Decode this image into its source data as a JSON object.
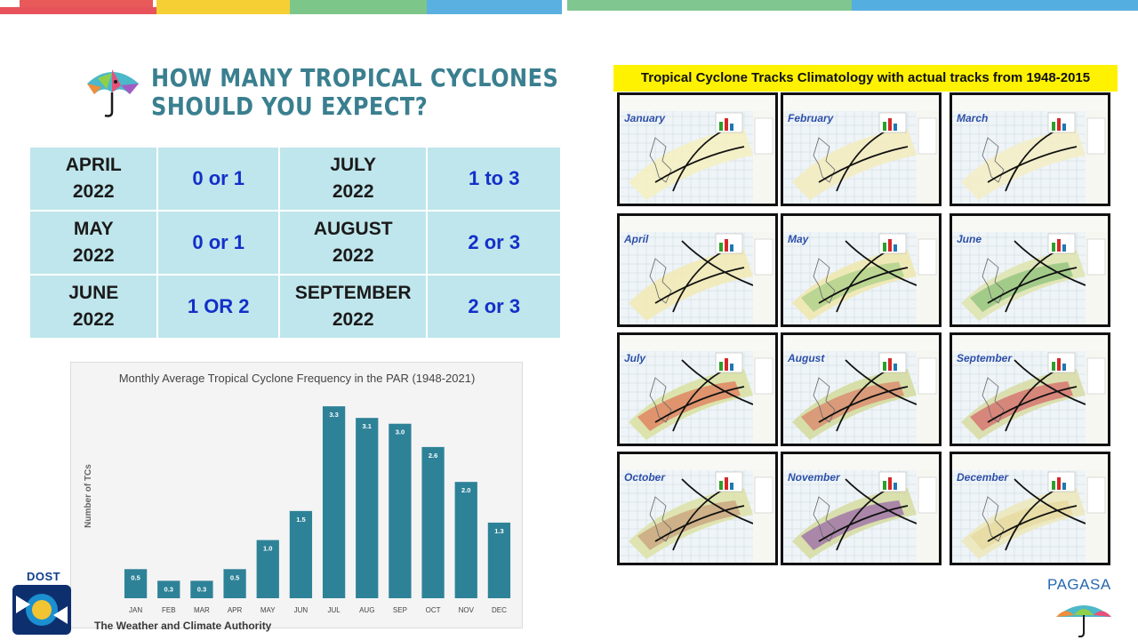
{
  "title": {
    "line1": "HOW MANY TROPICAL CYCLONES",
    "line2": "SHOULD YOU EXPECT?"
  },
  "forecast_table": {
    "rows": [
      {
        "month_a": "APRIL",
        "year_a": "2022",
        "value_a": "0 or 1",
        "month_b": "JULY",
        "year_b": "2022",
        "value_b": "1 to 3"
      },
      {
        "month_a": "MAY",
        "year_a": "2022",
        "value_a": "0 or 1",
        "month_b": "AUGUST",
        "year_b": "2022",
        "value_b": "2 or 3"
      },
      {
        "month_a": "JUNE",
        "year_a": "2022",
        "value_a": "1 OR 2",
        "month_b": "SEPTEMBER",
        "year_b": "2022",
        "value_b": "2 or 3"
      }
    ]
  },
  "chart_data": {
    "type": "bar",
    "title": "Monthly Average Tropical Cyclone Frequency in the PAR (1948-2021)",
    "xlabel": "",
    "ylabel": "Number of TCs",
    "categories": [
      "JAN",
      "FEB",
      "MAR",
      "APR",
      "MAY",
      "JUN",
      "JUL",
      "AUG",
      "SEP",
      "OCT",
      "NOV",
      "DEC"
    ],
    "values": [
      0.5,
      0.3,
      0.3,
      0.5,
      1.0,
      1.5,
      3.3,
      3.1,
      3.0,
      2.6,
      2.0,
      1.3
    ],
    "value_labels": [
      "0.5",
      "0.3",
      "0.3",
      "0.5",
      "1.0",
      "1.5",
      "3.3",
      "3.1",
      "3.0",
      "2.6",
      "2.0",
      "1.3"
    ],
    "ylim": [
      0,
      3.5
    ],
    "grid": false,
    "bar_color": "#2e8298"
  },
  "climatology": {
    "title": "Tropical Cyclone Tracks Climatology with actual tracks from 1948-2015",
    "months": [
      "January",
      "February",
      "March",
      "April",
      "May",
      "June",
      "July",
      "August",
      "September",
      "October",
      "November",
      "December"
    ]
  },
  "branding": {
    "dost": "DOST",
    "tagline": "The Weather and Climate Authority",
    "pagasa": "PAGASA"
  },
  "colors": {
    "title": "#3a7f8f",
    "table_cell": "#bfe6ec",
    "table_value": "#1330c8",
    "yellow_banner": "#fff200"
  }
}
